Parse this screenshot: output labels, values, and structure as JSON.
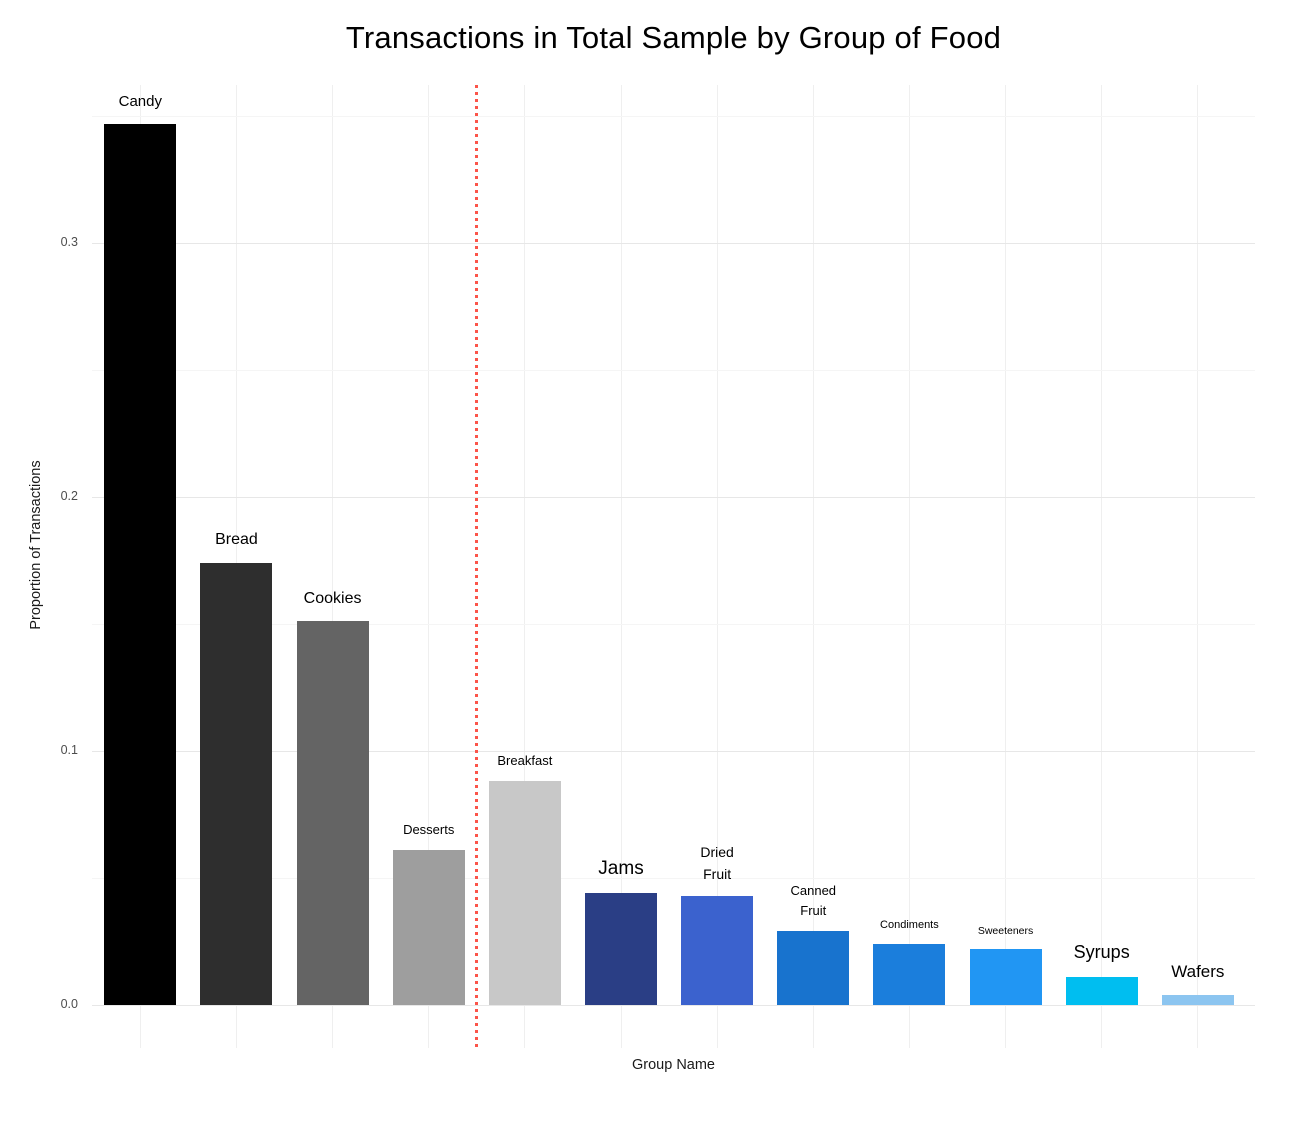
{
  "chart_data": {
    "type": "bar",
    "title": "Transactions in Total Sample by Group of Food",
    "xlabel": "Group Name",
    "ylabel": "Proportion of Transactions",
    "ylim": [
      -0.017,
      0.362
    ],
    "ytick_labels": [
      "0.0",
      "0.1",
      "0.2",
      "0.3"
    ],
    "ytick_values": [
      0,
      0.1,
      0.2,
      0.3
    ],
    "minor_gridline_values": [
      0.05,
      0.15,
      0.25,
      0.35
    ],
    "grid": "major and minor horizontal + vertical at each category, light gray on white",
    "legend": "none",
    "categories": [
      "Candy",
      "Bread",
      "Cookies",
      "Desserts",
      "Breakfast",
      "Jams",
      "Dried Fruit",
      "Canned Fruit",
      "Condiments",
      "Sweeteners",
      "Syrups",
      "Wafers"
    ],
    "values": [
      0.347,
      0.174,
      0.151,
      0.061,
      0.088,
      0.044,
      0.043,
      0.029,
      0.024,
      0.022,
      0.011,
      0.004
    ],
    "bar_colors": [
      "#000000",
      "#2E2E2E",
      "#646464",
      "#9E9E9E",
      "#C8C8C8",
      "#2A3E85",
      "#3B62CE",
      "#1873CE",
      "#1B7EDC",
      "#2196F3",
      "#00BEF0",
      "#8CC5F0"
    ],
    "label_lines": [
      [
        "Candy"
      ],
      [
        "Bread"
      ],
      [
        "Cookies"
      ],
      [
        "Desserts"
      ],
      [
        "Breakfast"
      ],
      [
        "Jams"
      ],
      [
        "Dried",
        "Fruit"
      ],
      [
        "Canned",
        "Fruit"
      ],
      [
        "Condiments"
      ],
      [
        "Sweeteners"
      ],
      [
        "Syrups"
      ],
      [
        "Wafers"
      ]
    ],
    "label_sizes": [
      15,
      16,
      16,
      13,
      13,
      19,
      14,
      13,
      11,
      10.5,
      18,
      17
    ],
    "divider": {
      "between": [
        "Desserts",
        "Breakfast"
      ],
      "position_index": 4.5,
      "color": "#FB5449",
      "style": "dotted vertical line"
    }
  },
  "colors": {
    "background": "#FFFFFF",
    "grid_major": "#E7E7E7",
    "grid_minor": "#F5F5F5",
    "grid_vertical": "#EFEFEF",
    "tick_label": "#4D4D4D",
    "text": "#000000"
  }
}
